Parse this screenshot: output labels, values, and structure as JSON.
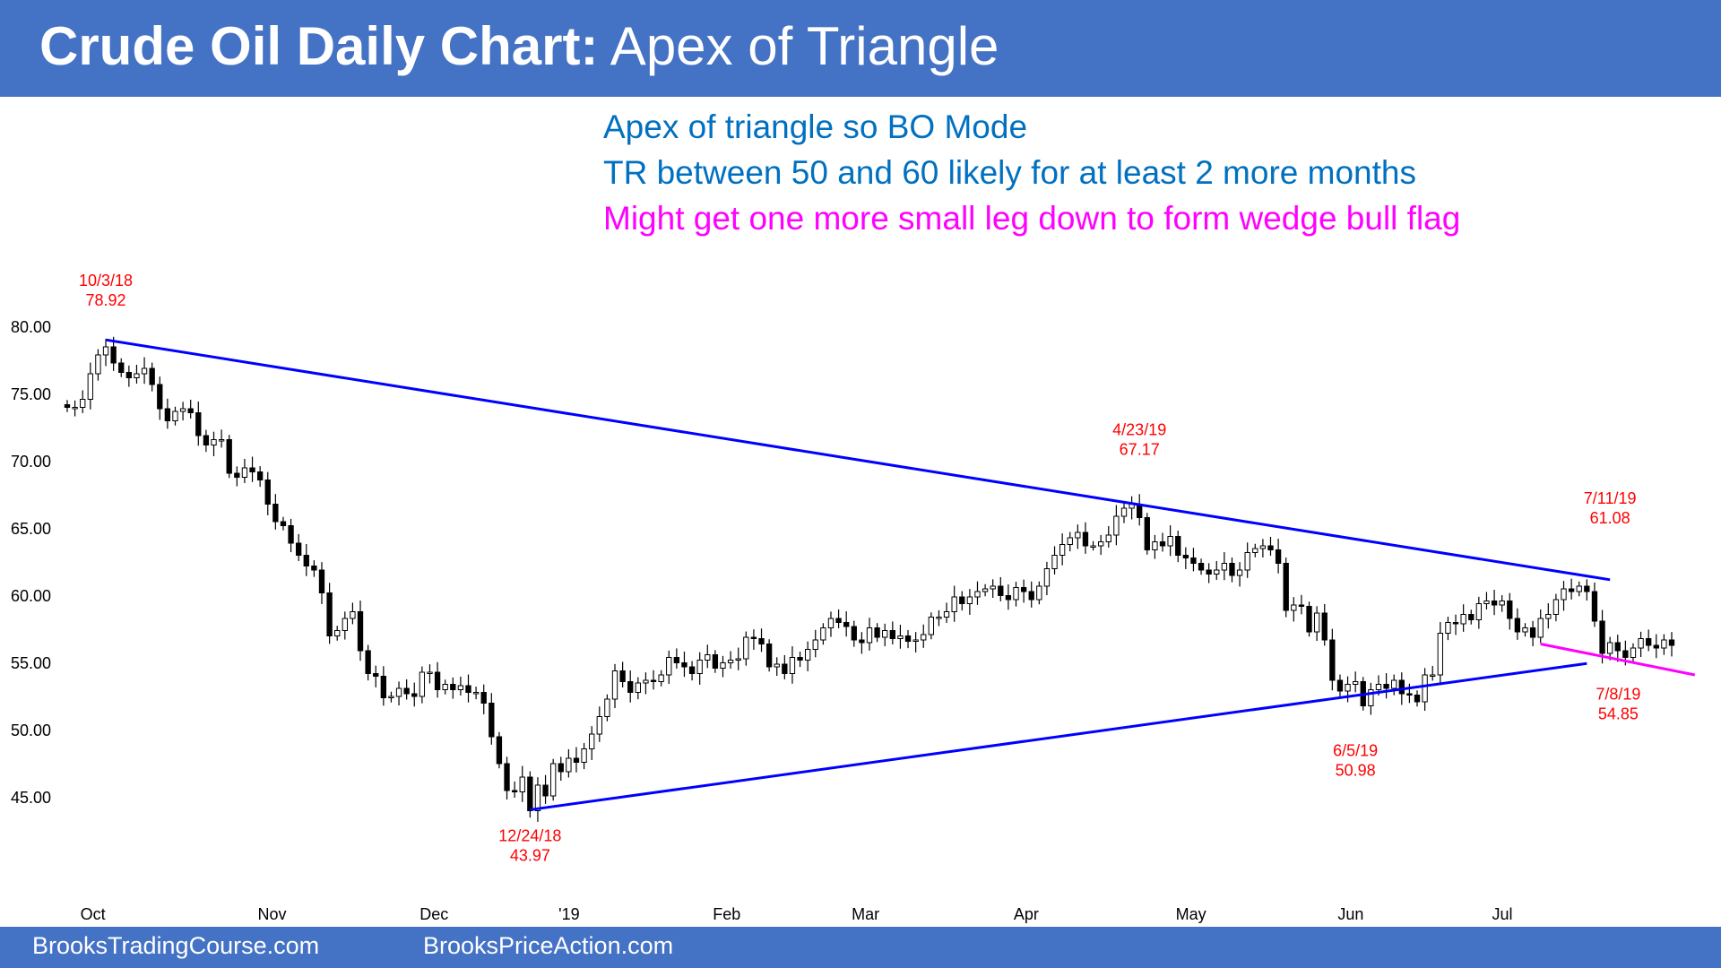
{
  "header": {
    "title_bold": "Crude Oil Daily Chart:",
    "title_rest": " Apex of Triangle",
    "background": "#4472c4"
  },
  "notes": [
    {
      "text": "Apex of triangle so BO Mode",
      "color": "#0070c0"
    },
    {
      "text": "TR between 50 and 60 likely for at least 2 more months",
      "color": "#0070c0"
    },
    {
      "text": "Might get one more small leg down to form wedge bull flag",
      "color": "#ff00ff"
    }
  ],
  "footer": {
    "left": "BrooksTradingCourse.com",
    "right": "BrooksPriceAction.com"
  },
  "chart_data": {
    "type": "candlestick",
    "title": "Crude Oil Daily Chart: Apex of Triangle",
    "ylim": [
      40.2,
      82.2
    ],
    "y_ticks": [
      "80.00",
      "75.00",
      "70.00",
      "65.00",
      "60.00",
      "55.00",
      "50.00",
      "45.00"
    ],
    "x_tick_labels": [
      {
        "label": "Oct",
        "bar": 1
      },
      {
        "label": "Nov",
        "bar": 24
      },
      {
        "label": "Dec",
        "bar": 45
      },
      {
        "label": "'19",
        "bar": 63
      },
      {
        "label": "Feb",
        "bar": 83
      },
      {
        "label": "Mar",
        "bar": 101
      },
      {
        "label": "Apr",
        "bar": 122
      },
      {
        "label": "May",
        "bar": 143
      },
      {
        "label": "Jun",
        "bar": 164
      },
      {
        "label": "Jul",
        "bar": 184
      }
    ],
    "grid": false,
    "colors": {
      "bull_body": "#ffffff",
      "bear_body": "#000000",
      "trendline": "#0000ff",
      "wedge_line": "#ff00ff",
      "annotation": "#ff0000"
    },
    "close": [
      73.9,
      73.9,
      74.5,
      76.4,
      77.8,
      78.4,
      77.2,
      76.5,
      76.1,
      76.4,
      76.8,
      75.6,
      73.8,
      72.9,
      73.6,
      73.8,
      73.5,
      71.8,
      71.1,
      71.5,
      71.5,
      69.0,
      68.7,
      69.4,
      69.1,
      68.5,
      66.7,
      65.4,
      65.1,
      63.8,
      62.9,
      62.1,
      61.8,
      60.1,
      56.9,
      57.3,
      58.2,
      58.7,
      55.8,
      54.1,
      53.9,
      52.3,
      52.4,
      53.0,
      52.6,
      52.4,
      54.2,
      54.2,
      52.9,
      53.3,
      52.9,
      53.2,
      52.7,
      52.7,
      51.9,
      49.4,
      47.4,
      45.4,
      45.3,
      46.4,
      43.9,
      45.8,
      45.0,
      47.4,
      46.8,
      47.8,
      47.5,
      48.5,
      49.6,
      50.9,
      52.2,
      54.3,
      53.5,
      52.7,
      53.4,
      53.6,
      53.5,
      54.0,
      55.3,
      54.9,
      54.6,
      54.1,
      55.1,
      55.5,
      54.5,
      54.9,
      55.1,
      55.2,
      56.8,
      56.7,
      56.3,
      54.6,
      54.8,
      54.1,
      55.3,
      55.1,
      55.9,
      56.6,
      57.5,
      58.2,
      57.9,
      57.6,
      56.6,
      56.4,
      57.5,
      56.8,
      57.3,
      56.7,
      56.9,
      56.5,
      56.6,
      57.0,
      58.3,
      58.3,
      58.7,
      59.8,
      59.3,
      59.8,
      60.2,
      60.4,
      60.6,
      59.9,
      59.6,
      60.5,
      60.2,
      59.6,
      60.6,
      61.9,
      62.9,
      63.7,
      64.2,
      64.6,
      63.6,
      63.6,
      63.9,
      64.4,
      65.8,
      66.4,
      66.7,
      65.7,
      63.3,
      63.9,
      63.6,
      64.3,
      62.9,
      62.7,
      62.3,
      61.8,
      61.5,
      61.8,
      62.3,
      61.4,
      61.8,
      63.1,
      63.4,
      63.6,
      63.3,
      62.3,
      58.8,
      59.2,
      59.1,
      57.2,
      58.6,
      56.6,
      53.6,
      52.8,
      53.3,
      53.5,
      51.7,
      52.9,
      53.3,
      53.0,
      53.6,
      52.6,
      52.5,
      52.0,
      54.0,
      54.0,
      57.1,
      57.9,
      57.8,
      58.5,
      58.1,
      59.3,
      59.5,
      59.2,
      59.5,
      58.2,
      57.2,
      57.5,
      56.8,
      58.2,
      58.5,
      59.6,
      60.4,
      60.2,
      60.6,
      60.2,
      58.0,
      55.6,
      56.4,
      55.8,
      55.3,
      56.0,
      56.7,
      56.2,
      56.0,
      56.6,
      56.2
    ],
    "annotations": [
      {
        "date": "10/3/18",
        "price": "78.92",
        "bar": 5,
        "value": 78.92
      },
      {
        "date": "12/24/18",
        "price": "43.97",
        "bar": 60,
        "value": 43.97
      },
      {
        "date": "4/23/19",
        "price": "67.17",
        "bar": 139,
        "value": 67.17
      },
      {
        "date": "6/5/19",
        "price": "50.98",
        "bar": 167,
        "value": 50.98
      },
      {
        "date": "7/11/19",
        "price": "61.08",
        "bar": 200,
        "value": 61.08
      },
      {
        "date": "7/8/19",
        "price": "54.85",
        "bar": 197,
        "value": 54.85
      }
    ],
    "lines": [
      {
        "name": "upper-trendline",
        "from": [
          5,
          78.92
        ],
        "to": [
          200,
          61.08
        ],
        "color": "#0000ff"
      },
      {
        "name": "lower-trendline",
        "from": [
          60,
          43.97
        ],
        "to": [
          197,
          54.85
        ],
        "color": "#0000ff"
      },
      {
        "name": "wedge-line",
        "from": [
          191,
          56.3
        ],
        "to": [
          211,
          54.0
        ],
        "color": "#ff00ff"
      }
    ]
  }
}
